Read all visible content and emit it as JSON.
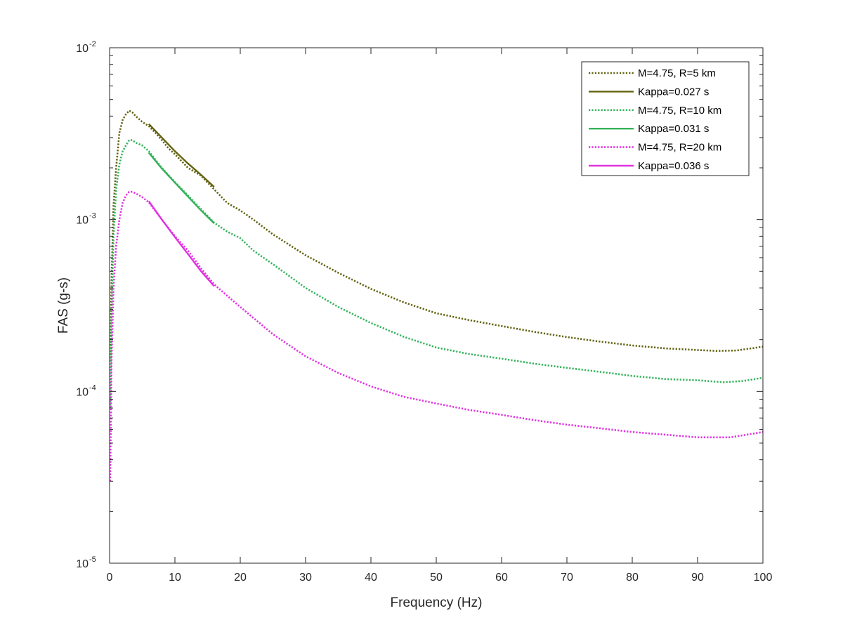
{
  "chart_data": {
    "type": "line",
    "xlabel": "Frequency (Hz)",
    "ylabel": "FAS (g-s)",
    "xlim": [
      0,
      100
    ],
    "ylim": [
      1e-05,
      0.01
    ],
    "yscale": "log",
    "xticks": [
      0,
      10,
      20,
      30,
      40,
      50,
      60,
      70,
      80,
      90,
      100
    ],
    "yticks": [
      {
        "value": 1e-05,
        "base": "10",
        "exp": "-5"
      },
      {
        "value": 0.0001,
        "base": "10",
        "exp": "-4"
      },
      {
        "value": 0.001,
        "base": "10",
        "exp": "-3"
      },
      {
        "value": 0.01,
        "base": "10",
        "exp": "-2"
      }
    ],
    "grid": false,
    "legend_position": "top-right",
    "series": [
      {
        "name": "M=4.75, R=5 km",
        "style": "dotted",
        "color": "#636312",
        "points": [
          [
            0.1,
            0.00015
          ],
          [
            0.3,
            0.00045
          ],
          [
            0.6,
            0.0012
          ],
          [
            1.0,
            0.002
          ],
          [
            1.5,
            0.0032
          ],
          [
            2.0,
            0.0038
          ],
          [
            2.5,
            0.0041
          ],
          [
            3.0,
            0.0043
          ],
          [
            3.5,
            0.0042
          ],
          [
            4.0,
            0.004
          ],
          [
            5.0,
            0.0037
          ],
          [
            6.0,
            0.0035
          ],
          [
            7.0,
            0.0032
          ],
          [
            8.0,
            0.0029
          ],
          [
            9.0,
            0.0026
          ],
          [
            10.0,
            0.0024
          ],
          [
            12.0,
            0.002
          ],
          [
            14.0,
            0.0018
          ],
          [
            16.0,
            0.0015
          ],
          [
            18.0,
            0.00125
          ],
          [
            20.0,
            0.00113
          ],
          [
            22.0,
            0.001
          ],
          [
            25.0,
            0.00082
          ],
          [
            30.0,
            0.00062
          ],
          [
            35.0,
            0.00049
          ],
          [
            40.0,
            0.000395
          ],
          [
            45.0,
            0.00033
          ],
          [
            50.0,
            0.000285
          ],
          [
            55.0,
            0.00026
          ],
          [
            60.0,
            0.00024
          ],
          [
            65.0,
            0.000222
          ],
          [
            70.0,
            0.000207
          ],
          [
            75.0,
            0.000195
          ],
          [
            80.0,
            0.000185
          ],
          [
            85.0,
            0.000178
          ],
          [
            90.0,
            0.000174
          ],
          [
            93.0,
            0.000172
          ],
          [
            96.0,
            0.000173
          ],
          [
            100.0,
            0.000182
          ]
        ]
      },
      {
        "name": "Kappa=0.027 s",
        "style": "solid",
        "color": "#636312",
        "points": [
          [
            6.0,
            0.0036
          ],
          [
            8.0,
            0.003
          ],
          [
            10.0,
            0.0025
          ],
          [
            12.0,
            0.00212
          ],
          [
            14.0,
            0.00182
          ],
          [
            16.0,
            0.00155
          ]
        ]
      },
      {
        "name": "M=4.75, R=10 km",
        "style": "dotted",
        "color": "#35b35b",
        "points": [
          [
            0.1,
            8e-05
          ],
          [
            0.3,
            0.0003
          ],
          [
            0.6,
            0.0008
          ],
          [
            1.0,
            0.0015
          ],
          [
            1.5,
            0.0021
          ],
          [
            2.0,
            0.0025
          ],
          [
            2.5,
            0.0027
          ],
          [
            3.0,
            0.0029
          ],
          [
            3.5,
            0.0029
          ],
          [
            4.0,
            0.0028
          ],
          [
            5.0,
            0.0027
          ],
          [
            6.0,
            0.0025
          ],
          [
            8.0,
            0.002
          ],
          [
            10.0,
            0.00165
          ],
          [
            12.0,
            0.00138
          ],
          [
            14.0,
            0.00115
          ],
          [
            16.0,
            0.00096
          ],
          [
            18.0,
            0.00085
          ],
          [
            20.0,
            0.00078
          ],
          [
            22.0,
            0.00066
          ],
          [
            25.0,
            0.00055
          ],
          [
            30.0,
            0.0004
          ],
          [
            35.0,
            0.00031
          ],
          [
            40.0,
            0.00025
          ],
          [
            45.0,
            0.000208
          ],
          [
            50.0,
            0.00018
          ],
          [
            55.0,
            0.000165
          ],
          [
            60.0,
            0.000155
          ],
          [
            65.0,
            0.000145
          ],
          [
            70.0,
            0.000137
          ],
          [
            75.0,
            0.00013
          ],
          [
            80.0,
            0.000123
          ],
          [
            85.0,
            0.000118
          ],
          [
            90.0,
            0.000116
          ],
          [
            94.0,
            0.000113
          ],
          [
            97.0,
            0.000115
          ],
          [
            100.0,
            0.00012
          ]
        ]
      },
      {
        "name": "Kappa=0.031 s",
        "style": "solid",
        "color": "#35b35b",
        "points": [
          [
            6.0,
            0.00245
          ],
          [
            8.0,
            0.00198
          ],
          [
            10.0,
            0.00164
          ],
          [
            12.0,
            0.00136
          ],
          [
            14.0,
            0.00113
          ],
          [
            16.0,
            0.00095
          ]
        ]
      },
      {
        "name": "M=4.75, R=20 km",
        "style": "dotted",
        "color": "#e133e1",
        "points": [
          [
            0.1,
            3e-05
          ],
          [
            0.3,
            0.00015
          ],
          [
            0.6,
            0.0004
          ],
          [
            1.0,
            0.0007
          ],
          [
            1.5,
            0.001
          ],
          [
            2.0,
            0.00125
          ],
          [
            2.5,
            0.00138
          ],
          [
            3.0,
            0.00145
          ],
          [
            3.5,
            0.00145
          ],
          [
            4.0,
            0.00142
          ],
          [
            5.0,
            0.00135
          ],
          [
            6.0,
            0.00126
          ],
          [
            8.0,
            0.001
          ],
          [
            10.0,
            0.0008
          ],
          [
            12.0,
            0.00066
          ],
          [
            14.0,
            0.00052
          ],
          [
            16.0,
            0.00042
          ],
          [
            18.0,
            0.00036
          ],
          [
            20.0,
            0.00031
          ],
          [
            25.0,
            0.000215
          ],
          [
            30.0,
            0.00016
          ],
          [
            35.0,
            0.000128
          ],
          [
            40.0,
            0.000107
          ],
          [
            45.0,
            9.3e-05
          ],
          [
            50.0,
            8.5e-05
          ],
          [
            55.0,
            7.8e-05
          ],
          [
            60.0,
            7.3e-05
          ],
          [
            65.0,
            6.8e-05
          ],
          [
            70.0,
            6.4e-05
          ],
          [
            75.0,
            6.1e-05
          ],
          [
            80.0,
            5.8e-05
          ],
          [
            85.0,
            5.6e-05
          ],
          [
            90.0,
            5.4e-05
          ],
          [
            95.0,
            5.4e-05
          ],
          [
            100.0,
            5.8e-05
          ]
        ]
      },
      {
        "name": "Kappa=0.036 s",
        "style": "solid",
        "color": "#e133e1",
        "points": [
          [
            6.0,
            0.00128
          ],
          [
            8.0,
            0.001
          ],
          [
            10.0,
            0.00079
          ],
          [
            12.0,
            0.00063
          ],
          [
            14.0,
            0.0005
          ],
          [
            16.0,
            0.00041
          ]
        ]
      }
    ]
  }
}
